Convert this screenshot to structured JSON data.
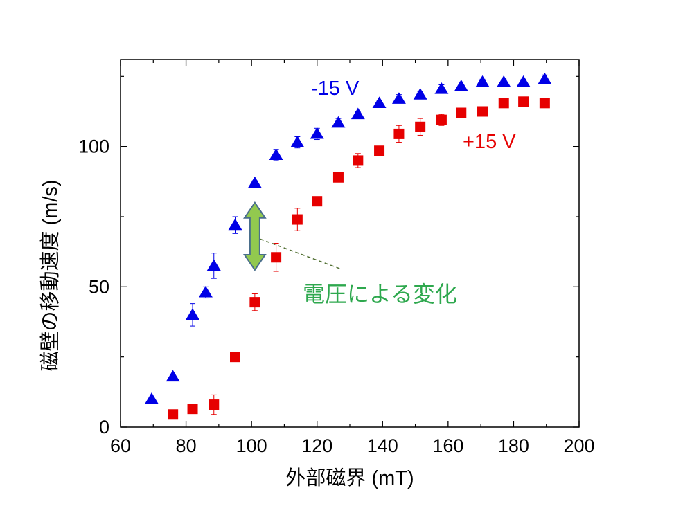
{
  "chart_data": {
    "type": "scatter",
    "title": "",
    "xlabel": "外部磁界 (mT)",
    "ylabel": "磁壁の移動速度 (m/s)",
    "xlim": [
      60,
      200
    ],
    "ylim": [
      0,
      131
    ],
    "x_ticks": [
      "60",
      "80",
      "100",
      "120",
      "140",
      "160",
      "180",
      "200"
    ],
    "y_ticks": [
      "0",
      "50",
      "100"
    ],
    "grid": false,
    "series": [
      {
        "name": "-15 V",
        "marker": "triangle",
        "color": "#0000e6",
        "points": [
          {
            "x": 69.5,
            "y": 10,
            "err": 0
          },
          {
            "x": 76,
            "y": 18,
            "err": 0
          },
          {
            "x": 82,
            "y": 40,
            "err": 4
          },
          {
            "x": 86,
            "y": 48,
            "err": 2
          },
          {
            "x": 88.5,
            "y": 57.5,
            "err": 4.5
          },
          {
            "x": 95,
            "y": 72,
            "err": 3
          },
          {
            "x": 101,
            "y": 87,
            "err": 0.8
          },
          {
            "x": 107.5,
            "y": 97,
            "err": 2
          },
          {
            "x": 114,
            "y": 101.5,
            "err": 2
          },
          {
            "x": 120,
            "y": 104.5,
            "err": 2
          },
          {
            "x": 126.5,
            "y": 108.5,
            "err": 1.5
          },
          {
            "x": 132.5,
            "y": 111.5,
            "err": 1
          },
          {
            "x": 139,
            "y": 115.5,
            "err": 1
          },
          {
            "x": 145,
            "y": 117,
            "err": 1.5
          },
          {
            "x": 151.5,
            "y": 118.5,
            "err": 1
          },
          {
            "x": 158,
            "y": 120.5,
            "err": 1.5
          },
          {
            "x": 164,
            "y": 121.5,
            "err": 1.5
          },
          {
            "x": 170.5,
            "y": 123,
            "err": 1
          },
          {
            "x": 177,
            "y": 123,
            "err": 1
          },
          {
            "x": 183,
            "y": 123,
            "err": 1
          },
          {
            "x": 189.5,
            "y": 124,
            "err": 1.5
          }
        ]
      },
      {
        "name": "+15 V",
        "marker": "square",
        "color": "#e60000",
        "points": [
          {
            "x": 76,
            "y": 4.5,
            "err": 1.5
          },
          {
            "x": 82,
            "y": 6.5,
            "err": 1
          },
          {
            "x": 88.5,
            "y": 8,
            "err": 3.5
          },
          {
            "x": 95,
            "y": 25,
            "err": 0.8
          },
          {
            "x": 101,
            "y": 44.5,
            "err": 3
          },
          {
            "x": 107.5,
            "y": 60.5,
            "err": 5
          },
          {
            "x": 114,
            "y": 74,
            "err": 4
          },
          {
            "x": 120,
            "y": 80.5,
            "err": 1
          },
          {
            "x": 126.5,
            "y": 89,
            "err": 1
          },
          {
            "x": 132.5,
            "y": 95,
            "err": 2.5
          },
          {
            "x": 139,
            "y": 98.5,
            "err": 1
          },
          {
            "x": 145,
            "y": 104.5,
            "err": 3
          },
          {
            "x": 151.5,
            "y": 107,
            "err": 3
          },
          {
            "x": 158,
            "y": 109.5,
            "err": 2
          },
          {
            "x": 164,
            "y": 112,
            "err": 1
          },
          {
            "x": 170.5,
            "y": 112.5,
            "err": 1
          },
          {
            "x": 177,
            "y": 115.5,
            "err": 1
          },
          {
            "x": 183,
            "y": 116,
            "err": 1
          },
          {
            "x": 189.5,
            "y": 115.5,
            "err": 1
          }
        ]
      }
    ],
    "annotations": {
      "series_label_minus": "-15 V",
      "series_label_plus": "+15 V",
      "change_label": "電圧による変化",
      "arrow_from": {
        "x": 101,
        "y": 56
      },
      "arrow_to": {
        "x": 101,
        "y": 80
      },
      "leader_from": {
        "x": 101,
        "y": 67
      },
      "leader_to": {
        "x": 121,
        "y": 56
      }
    },
    "colors": {
      "minus_series": "#0000e6",
      "plus_series": "#e60000",
      "arrow_fill": "#92c94f",
      "arrow_stroke": "#4a6e8c",
      "annotation_text": "#2ea84e",
      "leader_line": "#4f6e30",
      "axis": "#000000"
    }
  }
}
